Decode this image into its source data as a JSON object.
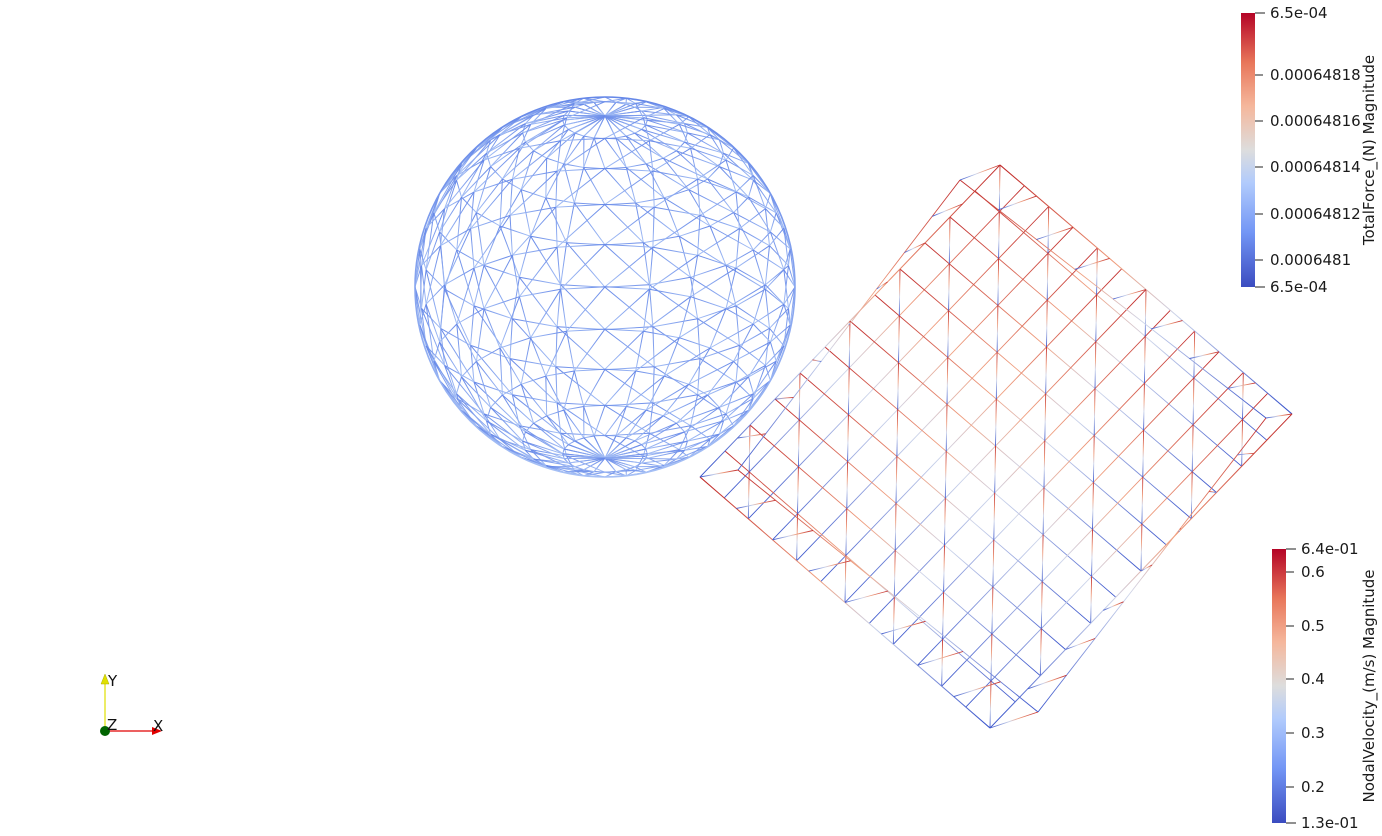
{
  "viewer": {
    "background": "#ffffff"
  },
  "objects": [
    {
      "name": "sphere",
      "kind": "wireframe-sphere",
      "color": "#7da0f0"
    },
    {
      "name": "box",
      "kind": "wireframe-box",
      "color_top": "#c03030",
      "color_bottom": "#4060d0"
    }
  ],
  "scalar_bars": {
    "force": {
      "title": "TotalForce_(N) Magnitude",
      "max_label": "6.5e-04",
      "min_label": "6.5e-04",
      "ticks": [
        "0.00064818",
        "0.00064816",
        "0.00064814",
        "0.00064812",
        "0.0006481"
      ]
    },
    "velocity": {
      "title": "NodalVelocity_(m/s) Magnitude",
      "max_label": "6.4e-01",
      "min_label": "1.3e-01",
      "ticks": [
        "0.6",
        "0.5",
        "0.4",
        "0.3",
        "0.2"
      ]
    },
    "colormap": [
      "#3b4cc0",
      "#7396f5",
      "#b1cbfc",
      "#dddddd",
      "#f5b79c",
      "#e8765a",
      "#b40426"
    ]
  },
  "axes": {
    "x_label": "X",
    "y_label": "Y",
    "z_label": "Z",
    "x_color": "#e00000",
    "y_color": "#e0e000",
    "z_color": "#006400"
  }
}
